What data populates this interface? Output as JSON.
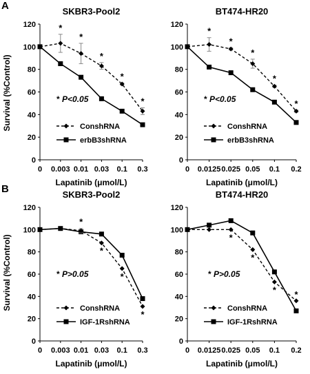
{
  "panel_labels": [
    "A",
    "B"
  ],
  "chart_data": [
    {
      "type": "line",
      "panel": "A",
      "title": "SKBR3-Pool2",
      "xlabel": "Lapatinib (μmol/L)",
      "ylabel": "Survival (%Control)",
      "categories": [
        "0",
        "0.003",
        "0.01",
        "0.03",
        "0.1",
        "0.3"
      ],
      "ylim": [
        0,
        120
      ],
      "yticks": [
        "0",
        "20",
        "40",
        "60",
        "80",
        "100",
        "120"
      ],
      "grid": false,
      "legend_position": "bottom-left",
      "annotation": {
        "star": "*",
        "text": "P<0.05"
      },
      "series": [
        {
          "name": "ConshRNA",
          "style": "dashed",
          "marker": "diamond",
          "values": [
            100,
            103,
            94,
            83,
            67,
            43
          ],
          "errors": [
            0,
            8,
            9,
            3,
            1,
            3
          ],
          "stars": [
            false,
            true,
            true,
            true,
            true,
            true
          ]
        },
        {
          "name": "erbB3shRNA",
          "style": "solid",
          "marker": "square",
          "values": [
            100,
            85,
            73,
            54,
            43,
            31
          ],
          "errors": [
            0,
            0,
            0,
            0,
            0,
            0
          ],
          "stars": [
            false,
            false,
            false,
            false,
            false,
            false
          ]
        }
      ]
    },
    {
      "type": "line",
      "panel": "A",
      "title": "BT474-HR20",
      "xlabel": "Lapatinib (μmol/L)",
      "ylabel": "",
      "categories": [
        "0",
        "0.0125",
        "0.025",
        "0.05",
        "0.1",
        "0.2"
      ],
      "ylim": [
        0,
        120
      ],
      "yticks": [
        "0",
        "20",
        "40",
        "60",
        "80",
        "100",
        "120"
      ],
      "grid": false,
      "legend_position": "bottom-left",
      "annotation": {
        "star": "*",
        "text": "P<0.05"
      },
      "series": [
        {
          "name": "ConshRNA",
          "style": "dashed",
          "marker": "diamond",
          "values": [
            100,
            102,
            98,
            85,
            65,
            43
          ],
          "errors": [
            0,
            6,
            1,
            4,
            1,
            1
          ],
          "stars": [
            false,
            true,
            true,
            true,
            true,
            true
          ]
        },
        {
          "name": "erbB3shRNA",
          "style": "solid",
          "marker": "square",
          "values": [
            100,
            82,
            77,
            62,
            51,
            33
          ],
          "errors": [
            0,
            0,
            0,
            0,
            0,
            0
          ],
          "stars": [
            false,
            false,
            false,
            false,
            false,
            false
          ]
        }
      ]
    },
    {
      "type": "line",
      "panel": "B",
      "title": "SKBR3-Pool2",
      "xlabel": "Lapatinib (μmol/L)",
      "ylabel": "Survival (%Control)",
      "categories": [
        "0",
        "0.003",
        "0.01",
        "0.03",
        "0.1",
        "0.3"
      ],
      "ylim": [
        0,
        120
      ],
      "yticks": [
        "0",
        "20",
        "40",
        "60",
        "80",
        "100",
        "120"
      ],
      "grid": false,
      "legend_position": "bottom-left",
      "annotation": {
        "star": "*",
        "text": "P>0.05"
      },
      "series": [
        {
          "name": "ConshRNA",
          "style": "dashed",
          "marker": "diamond",
          "values": [
            100,
            101,
            99,
            88,
            65,
            31
          ],
          "errors": [
            0,
            0,
            2,
            0,
            0,
            0
          ],
          "stars": [
            false,
            false,
            true,
            true,
            true,
            true
          ]
        },
        {
          "name": "IGF-1RshRNA",
          "style": "solid",
          "marker": "square",
          "values": [
            100,
            101,
            98,
            96,
            77,
            38
          ],
          "errors": [
            0,
            0,
            0,
            0,
            0,
            0
          ],
          "stars": [
            false,
            false,
            false,
            false,
            false,
            false
          ]
        }
      ]
    },
    {
      "type": "line",
      "panel": "B",
      "title": "BT474-HR20",
      "xlabel": "Lapatinib (μmol/L)",
      "ylabel": "",
      "categories": [
        "0",
        "0.0125",
        "0.025",
        "0.05",
        "0.1",
        "0.2"
      ],
      "ylim": [
        0,
        120
      ],
      "yticks": [
        "0",
        "20",
        "40",
        "60",
        "80",
        "100",
        "120"
      ],
      "grid": false,
      "legend_position": "bottom-left",
      "annotation": {
        "star": "*",
        "text": "P>0.05"
      },
      "series": [
        {
          "name": "ConshRNA",
          "style": "dashed",
          "marker": "diamond",
          "values": [
            100,
            100,
            100,
            82,
            53,
            36
          ],
          "errors": [
            0,
            0,
            0,
            0,
            0,
            0
          ],
          "stars": [
            false,
            false,
            true,
            true,
            true,
            true
          ]
        },
        {
          "name": "IGF-1RshRNA",
          "style": "solid",
          "marker": "square",
          "values": [
            100,
            104,
            108,
            97,
            62,
            27
          ],
          "errors": [
            0,
            0,
            0,
            0,
            0,
            0
          ],
          "stars": [
            false,
            false,
            false,
            false,
            false,
            false
          ]
        }
      ]
    }
  ]
}
